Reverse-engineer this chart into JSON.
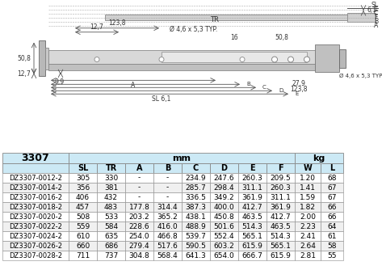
{
  "title": "3307",
  "col_headers": [
    "",
    "SL",
    "TR",
    "A",
    "B",
    "C",
    "D",
    "E",
    "F",
    "W",
    "L"
  ],
  "group_headers": [
    {
      "label": "3307",
      "col": 0
    },
    {
      "label": "mm",
      "cols": [
        1,
        2,
        3,
        4,
        5,
        6,
        7,
        8
      ],
      "span": 8
    },
    {
      "label": "kg",
      "cols": [
        9,
        10
      ],
      "span": 2
    }
  ],
  "rows": [
    [
      "DZ3307-0012-2",
      "305",
      "330",
      "-",
      "-",
      "234.9",
      "247.6",
      "260.3",
      "209.5",
      "1.20",
      "68"
    ],
    [
      "DZ3307-0014-2",
      "356",
      "381",
      "-",
      "-",
      "285.7",
      "298.4",
      "311.1",
      "260.3",
      "1.41",
      "67"
    ],
    [
      "DZ3307-0016-2",
      "406",
      "432",
      "-",
      "-",
      "336.5",
      "349.2",
      "361.9",
      "311.1",
      "1.59",
      "67"
    ],
    [
      "DZ3307-0018-2",
      "457",
      "483",
      "177.8",
      "314.4",
      "387.3",
      "400.0",
      "412.7",
      "361.9",
      "1.82",
      "66"
    ],
    [
      "DZ3307-0020-2",
      "508",
      "533",
      "203.2",
      "365.2",
      "438.1",
      "450.8",
      "463.5",
      "412.7",
      "2.00",
      "66"
    ],
    [
      "DZ3307-0022-2",
      "559",
      "584",
      "228.6",
      "416.0",
      "488.9",
      "501.6",
      "514.3",
      "463.5",
      "2.23",
      "64"
    ],
    [
      "DZ3307-0024-2",
      "610",
      "635",
      "254.0",
      "466.8",
      "539.7",
      "552.4",
      "565.1",
      "514.3",
      "2.41",
      "61"
    ],
    [
      "DZ3307-0026-2",
      "660",
      "686",
      "279.4",
      "517.6",
      "590.5",
      "603.2",
      "615.9",
      "565.1",
      "2.64",
      "58"
    ],
    [
      "DZ3307-0028-2",
      "711",
      "737",
      "304.8",
      "568.4",
      "641.3",
      "654.0",
      "666.7",
      "615.9",
      "2.81",
      "55"
    ]
  ],
  "header_bg": "#cce9f5",
  "subheader_bg": "#cce9f5",
  "row_bg_alt": "#ffffff",
  "row_bg": "#f5f5f5",
  "border_color": "#888888",
  "text_color": "#000000",
  "title_bg": "#cce9f5",
  "diagram_bg": "#ffffff"
}
